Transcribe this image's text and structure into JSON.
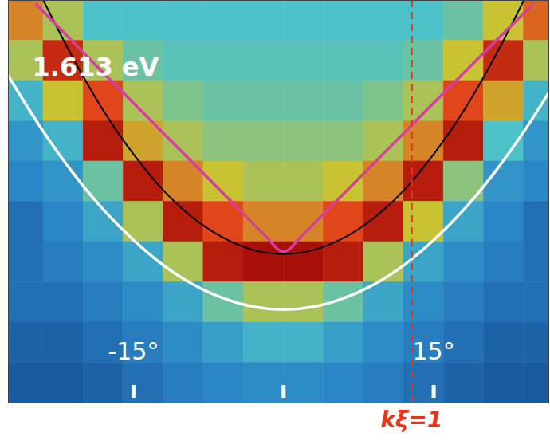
{
  "chart_data": {
    "type": "line",
    "title": "1.613 eV",
    "xlim": [
      -27.5,
      26.5
    ],
    "xticks": [
      {
        "value": -15,
        "label": "-15°"
      },
      {
        "value": 0,
        "label": null
      },
      {
        "value": 15,
        "label": "15°"
      }
    ],
    "ylim": [
      0,
      10
    ],
    "yticks": [],
    "tick_labels": "x",
    "heatmap": {
      "x": [
        -26,
        -22,
        -18,
        -14,
        -10,
        -6,
        -2,
        2,
        6,
        10,
        14,
        18,
        22,
        26
      ],
      "y": [
        9.5,
        8.5,
        7.5,
        6.5,
        5.5,
        4.5,
        3.5,
        2.5,
        1.5,
        0.5
      ],
      "zlim": [
        0,
        1
      ],
      "values": [
        [
          0.7,
          0.55,
          0.4,
          0.4,
          0.4,
          0.4,
          0.4,
          0.4,
          0.4,
          0.4,
          0.4,
          0.45,
          0.6,
          0.75
        ],
        [
          0.55,
          0.9,
          0.55,
          0.45,
          0.42,
          0.42,
          0.42,
          0.42,
          0.42,
          0.42,
          0.45,
          0.6,
          0.9,
          0.55
        ],
        [
          0.35,
          0.6,
          0.8,
          0.55,
          0.48,
          0.45,
          0.45,
          0.45,
          0.45,
          0.48,
          0.55,
          0.8,
          0.65,
          0.35
        ],
        [
          0.25,
          0.35,
          0.95,
          0.65,
          0.55,
          0.5,
          0.5,
          0.5,
          0.5,
          0.55,
          0.7,
          0.95,
          0.4,
          0.25
        ],
        [
          0.2,
          0.25,
          0.45,
          0.95,
          0.7,
          0.6,
          0.55,
          0.55,
          0.6,
          0.7,
          0.95,
          0.5,
          0.25,
          0.2
        ],
        [
          0.15,
          0.2,
          0.3,
          0.55,
          0.95,
          0.8,
          0.7,
          0.7,
          0.8,
          0.95,
          0.6,
          0.3,
          0.2,
          0.15
        ],
        [
          0.15,
          0.18,
          0.22,
          0.3,
          0.55,
          0.95,
          1.0,
          1.0,
          0.95,
          0.55,
          0.3,
          0.22,
          0.18,
          0.15
        ],
        [
          0.15,
          0.15,
          0.18,
          0.22,
          0.3,
          0.45,
          0.55,
          0.55,
          0.45,
          0.3,
          0.22,
          0.18,
          0.15,
          0.15
        ],
        [
          0.12,
          0.12,
          0.15,
          0.18,
          0.22,
          0.28,
          0.35,
          0.35,
          0.28,
          0.22,
          0.18,
          0.15,
          0.12,
          0.12
        ],
        [
          0.1,
          0.1,
          0.12,
          0.15,
          0.18,
          0.2,
          0.22,
          0.22,
          0.2,
          0.18,
          0.15,
          0.12,
          0.1,
          0.1
        ]
      ]
    },
    "series": [
      {
        "color": "#ffffff",
        "x": [
          -27.5,
          -24,
          -21,
          -18,
          -15,
          -12,
          -9,
          -6,
          -3,
          0,
          3,
          6,
          9,
          12,
          15,
          18,
          21,
          24,
          26.5
        ],
        "values": [
          8.12,
          6.74,
          5.7,
          4.8,
          4.05,
          3.42,
          2.94,
          2.6,
          2.39,
          2.32,
          2.39,
          2.6,
          2.94,
          3.42,
          4.05,
          4.8,
          5.7,
          6.74,
          7.71
        ]
      },
      {
        "color": "#000000",
        "x": [
          -24,
          -21,
          -18,
          -15,
          -12,
          -9,
          -6,
          -3,
          0,
          3,
          6,
          9,
          12,
          15,
          18,
          21,
          24
        ],
        "values": [
          10.0,
          8.55,
          7.26,
          6.18,
          5.28,
          4.59,
          4.1,
          3.8,
          3.7,
          3.8,
          4.1,
          4.59,
          5.28,
          6.18,
          7.26,
          8.55,
          10.0
        ]
      },
      {
        "color": "#d63fa0",
        "x": [
          -24.7,
          -18,
          -12,
          -6,
          -2,
          0,
          2,
          6,
          12,
          18,
          24.9
        ],
        "values": [
          9.9,
          8.2,
          6.7,
          5.2,
          4.2,
          3.76,
          4.2,
          5.2,
          6.7,
          8.2,
          9.9
        ]
      }
    ],
    "vline": {
      "x": 12.8,
      "label": "kξ=1",
      "color": "#e8341c",
      "line_style": "dashed"
    }
  }
}
